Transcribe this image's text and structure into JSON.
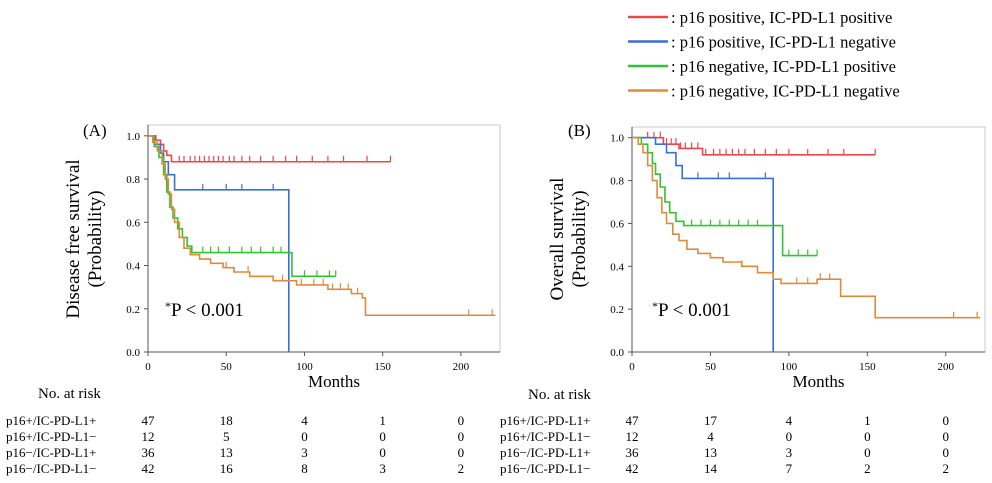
{
  "legend": [
    {
      "label": ": p16 positive, IC-PD-L1 positive",
      "color": "#e5484d"
    },
    {
      "label": ": p16 positive, IC-PD-L1 negative",
      "color": "#3a6fd8"
    },
    {
      "label": ": p16 negative, IC-PD-L1 positive",
      "color": "#35c135"
    },
    {
      "label": ": p16 negative, IC-PD-L1 negative",
      "color": "#e08a3c"
    }
  ],
  "chart_data": [
    {
      "type": "line",
      "subtype": "kaplan-meier",
      "panel_label": "(A)",
      "xlabel": "Months",
      "ylabel_line1": "Disease free survival",
      "ylabel_line2": "(Probability)",
      "annotation_star": "*",
      "annotation": "P < 0.001",
      "xlim": [
        0,
        225
      ],
      "ylim": [
        0,
        1.05
      ],
      "xticks": [
        0,
        50,
        100,
        150,
        200
      ],
      "yticks": [
        "0.0",
        "0.2",
        "0.4",
        "0.6",
        "0.8",
        "1.0"
      ],
      "series": [
        {
          "color": "#e5484d",
          "steps": [
            [
              0,
              1.0
            ],
            [
              5,
              0.98
            ],
            [
              8,
              0.96
            ],
            [
              10,
              0.93
            ],
            [
              12,
              0.91
            ],
            [
              15,
              0.88
            ],
            [
              155,
              0.88
            ]
          ],
          "censors": [
            20,
            23,
            27,
            30,
            33,
            36,
            39,
            42,
            45,
            48,
            52,
            55,
            60,
            65,
            72,
            80,
            88,
            95,
            105,
            115,
            125,
            140,
            155
          ]
        },
        {
          "color": "#3a6fd8",
          "steps": [
            [
              0,
              1.0
            ],
            [
              4,
              0.96
            ],
            [
              8,
              0.92
            ],
            [
              10,
              0.88
            ],
            [
              13,
              0.82
            ],
            [
              17,
              0.75
            ],
            [
              87,
              0.75
            ],
            [
              90,
              0.0
            ]
          ],
          "censors": [
            35,
            50,
            60,
            80
          ]
        },
        {
          "color": "#35c135",
          "steps": [
            [
              0,
              1.0
            ],
            [
              4,
              0.95
            ],
            [
              7,
              0.9
            ],
            [
              10,
              0.82
            ],
            [
              12,
              0.74
            ],
            [
              14,
              0.67
            ],
            [
              16,
              0.62
            ],
            [
              19,
              0.57
            ],
            [
              22,
              0.53
            ],
            [
              25,
              0.49
            ],
            [
              28,
              0.46
            ],
            [
              90,
              0.46
            ],
            [
              92,
              0.35
            ],
            [
              120,
              0.35
            ]
          ],
          "censors": [
            35,
            40,
            45,
            52,
            60,
            66,
            72,
            80,
            85,
            100,
            108,
            116,
            120
          ]
        },
        {
          "color": "#e08a3c",
          "steps": [
            [
              0,
              1.0
            ],
            [
              3,
              0.97
            ],
            [
              6,
              0.93
            ],
            [
              9,
              0.87
            ],
            [
              11,
              0.8
            ],
            [
              13,
              0.73
            ],
            [
              15,
              0.66
            ],
            [
              17,
              0.6
            ],
            [
              20,
              0.53
            ],
            [
              23,
              0.48
            ],
            [
              27,
              0.45
            ],
            [
              33,
              0.43
            ],
            [
              40,
              0.41
            ],
            [
              48,
              0.39
            ],
            [
              55,
              0.37
            ],
            [
              65,
              0.35
            ],
            [
              80,
              0.33
            ],
            [
              95,
              0.31
            ],
            [
              110,
              0.31
            ],
            [
              115,
              0.29
            ],
            [
              127,
              0.29
            ],
            [
              130,
              0.27
            ],
            [
              137,
              0.25
            ],
            [
              139,
              0.17
            ],
            [
              222,
              0.17
            ]
          ],
          "censors": [
            50,
            64,
            86,
            98,
            106,
            112,
            118,
            123,
            128,
            134,
            205,
            220
          ]
        }
      ],
      "risk_table": {
        "title": "No. at risk",
        "rows": [
          {
            "label": "p16+/IC-PD-L1+",
            "values": [
              "47",
              "18",
              "4",
              "1",
              "0"
            ]
          },
          {
            "label": "p16+/IC-PD-L1−",
            "values": [
              "12",
              "5",
              "0",
              "0",
              "0"
            ]
          },
          {
            "label": "p16−/IC-PD-L1+",
            "values": [
              "36",
              "13",
              "3",
              "0",
              "0"
            ]
          },
          {
            "label": "p16−/IC-PD-L1−",
            "values": [
              "42",
              "16",
              "8",
              "3",
              "2"
            ]
          }
        ]
      }
    },
    {
      "type": "line",
      "subtype": "kaplan-meier",
      "panel_label": "(B)",
      "xlabel": "Months",
      "ylabel_line1": "Overall survival",
      "ylabel_line2": "(Probability)",
      "annotation_star": "*",
      "annotation": "P < 0.001",
      "xlim": [
        0,
        225
      ],
      "ylim": [
        0,
        1.05
      ],
      "xticks": [
        0,
        50,
        100,
        150,
        200
      ],
      "yticks": [
        "0.0",
        "0.2",
        "0.4",
        "0.6",
        "0.8",
        "1.0"
      ],
      "series": [
        {
          "color": "#e5484d",
          "steps": [
            [
              0,
              1.0
            ],
            [
              20,
              0.97
            ],
            [
              30,
              0.95
            ],
            [
              45,
              0.92
            ],
            [
              155,
              0.92
            ]
          ],
          "censors": [
            10,
            14,
            18,
            22,
            25,
            28,
            31,
            34,
            38,
            42,
            47,
            52,
            56,
            60,
            64,
            68,
            72,
            78,
            85,
            92,
            100,
            112,
            125,
            135,
            155
          ]
        },
        {
          "color": "#3a6fd8",
          "steps": [
            [
              0,
              1.0
            ],
            [
              15,
              0.97
            ],
            [
              22,
              0.93
            ],
            [
              28,
              0.87
            ],
            [
              32,
              0.81
            ],
            [
              88,
              0.81
            ],
            [
              90,
              0.0
            ]
          ],
          "censors": [
            42,
            55,
            62,
            85
          ]
        },
        {
          "color": "#35c135",
          "steps": [
            [
              0,
              1.0
            ],
            [
              6,
              0.97
            ],
            [
              10,
              0.93
            ],
            [
              13,
              0.88
            ],
            [
              15,
              0.83
            ],
            [
              18,
              0.77
            ],
            [
              21,
              0.7
            ],
            [
              24,
              0.65
            ],
            [
              28,
              0.61
            ],
            [
              33,
              0.59
            ],
            [
              93,
              0.59
            ],
            [
              96,
              0.45
            ],
            [
              118,
              0.45
            ]
          ],
          "censors": [
            38,
            44,
            50,
            56,
            62,
            68,
            74,
            80,
            100,
            106,
            112,
            118
          ]
        },
        {
          "color": "#e08a3c",
          "steps": [
            [
              0,
              1.0
            ],
            [
              4,
              0.97
            ],
            [
              7,
              0.93
            ],
            [
              10,
              0.87
            ],
            [
              13,
              0.8
            ],
            [
              16,
              0.72
            ],
            [
              19,
              0.65
            ],
            [
              22,
              0.6
            ],
            [
              26,
              0.55
            ],
            [
              30,
              0.52
            ],
            [
              35,
              0.48
            ],
            [
              42,
              0.46
            ],
            [
              50,
              0.44
            ],
            [
              58,
              0.42
            ],
            [
              70,
              0.4
            ],
            [
              80,
              0.37
            ],
            [
              90,
              0.34
            ],
            [
              95,
              0.32
            ],
            [
              110,
              0.32
            ],
            [
              118,
              0.34
            ],
            [
              128,
              0.34
            ],
            [
              133,
              0.26
            ],
            [
              152,
              0.26
            ],
            [
              155,
              0.16
            ],
            [
              222,
              0.16
            ]
          ],
          "censors": [
            70,
            90,
            105,
            112,
            120,
            126,
            205,
            220
          ]
        }
      ],
      "risk_table": {
        "title": "No. at risk",
        "rows": [
          {
            "label": "p16+/IC-PD-L1+",
            "values": [
              "47",
              "17",
              "4",
              "1",
              "0"
            ]
          },
          {
            "label": "p16+/IC-PD-L1−",
            "values": [
              "12",
              "4",
              "0",
              "0",
              "0"
            ]
          },
          {
            "label": "p16−/IC-PD-L1+",
            "values": [
              "36",
              "13",
              "3",
              "0",
              "0"
            ]
          },
          {
            "label": "p16−/IC-PD-L1−",
            "values": [
              "42",
              "14",
              "7",
              "2",
              "2"
            ]
          }
        ]
      }
    }
  ]
}
